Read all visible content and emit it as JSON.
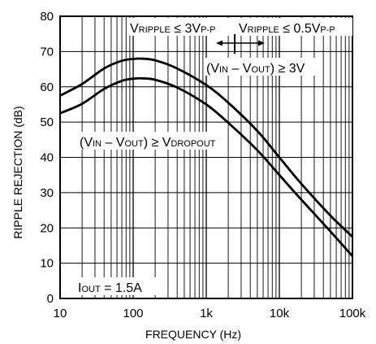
{
  "chart_data": {
    "type": "line",
    "xscale": "log",
    "xlim": [
      10,
      100000
    ],
    "ylim": [
      0,
      80
    ],
    "grid": true,
    "xlabel": "FREQUENCY (Hz)",
    "ylabel": "RIPPLE REJECTION (dB)",
    "x_tick_labels": [
      "10",
      "100",
      "1k",
      "10k",
      "100k"
    ],
    "x_tick_values": [
      10,
      100,
      1000,
      10000,
      100000
    ],
    "y_tick_labels": [
      "0",
      "10",
      "20",
      "30",
      "40",
      "50",
      "60",
      "70",
      "80"
    ],
    "y_tick_values": [
      0,
      10,
      20,
      30,
      40,
      50,
      60,
      70,
      80
    ],
    "series": [
      {
        "name": "(VIN – VOUT) ≥ 3V",
        "x": [
          10,
          20,
          40,
          70,
          100,
          130,
          200,
          400,
          1000,
          2000,
          5000,
          10000,
          20000,
          50000,
          100000
        ],
        "y": [
          57.5,
          60.8,
          65.2,
          67.4,
          67.9,
          68.0,
          67.5,
          65.2,
          60.5,
          55.5,
          47.5,
          40.0,
          32.5,
          23.5,
          17.5
        ]
      },
      {
        "name": "(VIN – VOUT) ≥ VDROPOUT",
        "x": [
          10,
          20,
          40,
          70,
          100,
          130,
          200,
          400,
          1000,
          2000,
          5000,
          10000,
          20000,
          50000,
          100000
        ],
        "y": [
          52.5,
          55.2,
          59.4,
          61.7,
          62.3,
          62.4,
          62.0,
          59.8,
          55.0,
          49.8,
          42.0,
          35.0,
          28.0,
          19.0,
          12.0
        ]
      }
    ],
    "annotations": {
      "ripple_left": {
        "main": "V",
        "sub": "RIPPLE",
        "mid": " ≤ 3V",
        "sub2": "P-P"
      },
      "ripple_right": {
        "main": "V",
        "sub": "RIPPLE",
        "mid": " ≤ 0.5V",
        "sub2": "P-P"
      },
      "upper_curve": {
        "a": "(V",
        "a_sub": "IN",
        "b": " – V",
        "b_sub": "OUT",
        "c": ") ≥ 3V"
      },
      "lower_curve": {
        "a": "(V",
        "a_sub": "IN",
        "b": " – V",
        "b_sub": "OUT",
        "c": ") ≥ V",
        "c_sub": "DROPOUT"
      },
      "iout": {
        "a": "I",
        "a_sub": "OUT",
        "b": " = 1.5A"
      }
    },
    "annotation_boundary_freq": 3000
  }
}
